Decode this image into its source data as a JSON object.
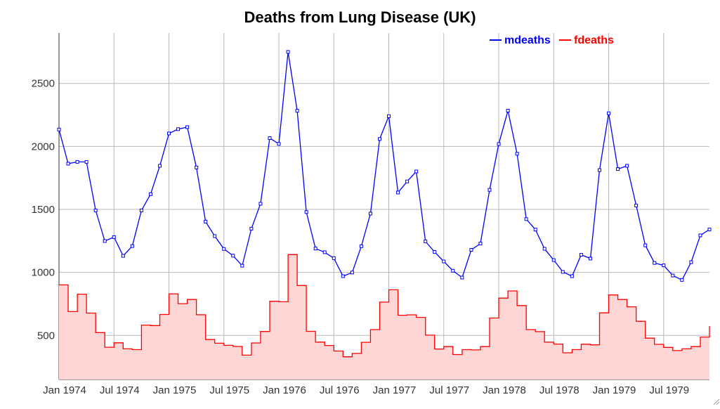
{
  "chart_data": {
    "type": "line",
    "title": "Deaths from Lung Disease (UK)",
    "xlabel": "",
    "ylabel": "",
    "x": [
      "1974-01",
      "1974-02",
      "1974-03",
      "1974-04",
      "1974-05",
      "1974-06",
      "1974-07",
      "1974-08",
      "1974-09",
      "1974-10",
      "1974-11",
      "1974-12",
      "1975-01",
      "1975-02",
      "1975-03",
      "1975-04",
      "1975-05",
      "1975-06",
      "1975-07",
      "1975-08",
      "1975-09",
      "1975-10",
      "1975-11",
      "1975-12",
      "1976-01",
      "1976-02",
      "1976-03",
      "1976-04",
      "1976-05",
      "1976-06",
      "1976-07",
      "1976-08",
      "1976-09",
      "1976-10",
      "1976-11",
      "1976-12",
      "1977-01",
      "1977-02",
      "1977-03",
      "1977-04",
      "1977-05",
      "1977-06",
      "1977-07",
      "1977-08",
      "1977-09",
      "1977-10",
      "1977-11",
      "1977-12",
      "1978-01",
      "1978-02",
      "1978-03",
      "1978-04",
      "1978-05",
      "1978-06",
      "1978-07",
      "1978-08",
      "1978-09",
      "1978-10",
      "1978-11",
      "1978-12",
      "1979-01",
      "1979-02",
      "1979-03",
      "1979-04",
      "1979-05",
      "1979-06",
      "1979-07",
      "1979-08",
      "1979-09",
      "1979-10",
      "1979-11",
      "1979-12"
    ],
    "series": [
      {
        "name": "mdeaths",
        "color": "#0000ff",
        "style": "line-with-markers",
        "values": [
          2134,
          1863,
          1877,
          1877,
          1492,
          1249,
          1280,
          1131,
          1209,
          1492,
          1621,
          1846,
          2103,
          2137,
          2153,
          1833,
          1403,
          1288,
          1186,
          1133,
          1053,
          1347,
          1545,
          2066,
          2020,
          2750,
          2283,
          1479,
          1189,
          1160,
          1113,
          970,
          999,
          1208,
          1467,
          2059,
          2240,
          1634,
          1722,
          1801,
          1246,
          1162,
          1087,
          1013,
          959,
          1179,
          1229,
          1655,
          2019,
          2284,
          1942,
          1423,
          1340,
          1187,
          1098,
          1004,
          970,
          1140,
          1110,
          1812,
          2263,
          1820,
          1846,
          1531,
          1215,
          1075,
          1056,
          975,
          940,
          1081,
          1294,
          1341
        ]
      },
      {
        "name": "fdeaths",
        "color": "#ff0000",
        "fill": "#ffd6d6",
        "style": "step-area",
        "values": [
          901,
          689,
          827,
          677,
          522,
          406,
          441,
          393,
          387,
          582,
          578,
          666,
          830,
          752,
          785,
          664,
          467,
          438,
          421,
          412,
          343,
          440,
          531,
          771,
          767,
          1141,
          896,
          532,
          447,
          420,
          376,
          330,
          357,
          445,
          546,
          764,
          862,
          660,
          663,
          643,
          502,
          392,
          411,
          348,
          387,
          385,
          411,
          638,
          796,
          853,
          737,
          546,
          530,
          446,
          431,
          362,
          387,
          430,
          425,
          679,
          821,
          785,
          727,
          612,
          478,
          429,
          405,
          379,
          393,
          411,
          487,
          574
        ]
      }
    ],
    "y_ticks": [
      500,
      1000,
      1500,
      2000,
      2500
    ],
    "x_tick_labels": [
      "Jan 1974",
      "Jul 1974",
      "Jan 1975",
      "Jul 1975",
      "Jan 1976",
      "Jul 1976",
      "Jan 1977",
      "Jul 1977",
      "Jan 1978",
      "Jul 1978",
      "Jan 1979",
      "Jul 1979"
    ],
    "ylim": [
      150,
      2900
    ],
    "xlim": [
      "1974-01",
      "1979-12"
    ],
    "grid": true,
    "legend": "top-right"
  }
}
